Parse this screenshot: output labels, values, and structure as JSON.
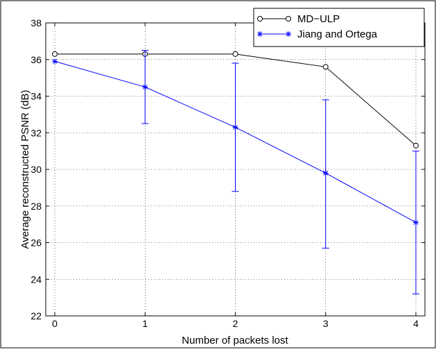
{
  "chart_data": {
    "type": "line",
    "xlabel": "Number of packets lost",
    "ylabel": "Average reconstructed PSNR (dB)",
    "x": [
      0,
      1,
      2,
      3,
      4
    ],
    "xlim": [
      -0.1,
      4.1
    ],
    "ylim": [
      22,
      38
    ],
    "xticks": [
      "0",
      "1",
      "2",
      "3",
      "4"
    ],
    "yticks": [
      "22",
      "24",
      "26",
      "28",
      "30",
      "32",
      "34",
      "36",
      "38"
    ],
    "grid": true,
    "legend_position": "top-right",
    "series": [
      {
        "name": "MD−ULP",
        "color": "#000000",
        "marker": "circle",
        "values": [
          36.3,
          36.3,
          36.3,
          35.6,
          31.3
        ]
      },
      {
        "name": "Jiang and Ortega",
        "color": "#0000ff",
        "marker": "star",
        "values": [
          35.9,
          34.5,
          32.3,
          29.8,
          27.1
        ],
        "error_low": [
          35.9,
          32.5,
          28.8,
          25.7,
          23.2
        ],
        "error_high": [
          35.9,
          36.5,
          35.8,
          33.8,
          31.0
        ]
      }
    ]
  }
}
